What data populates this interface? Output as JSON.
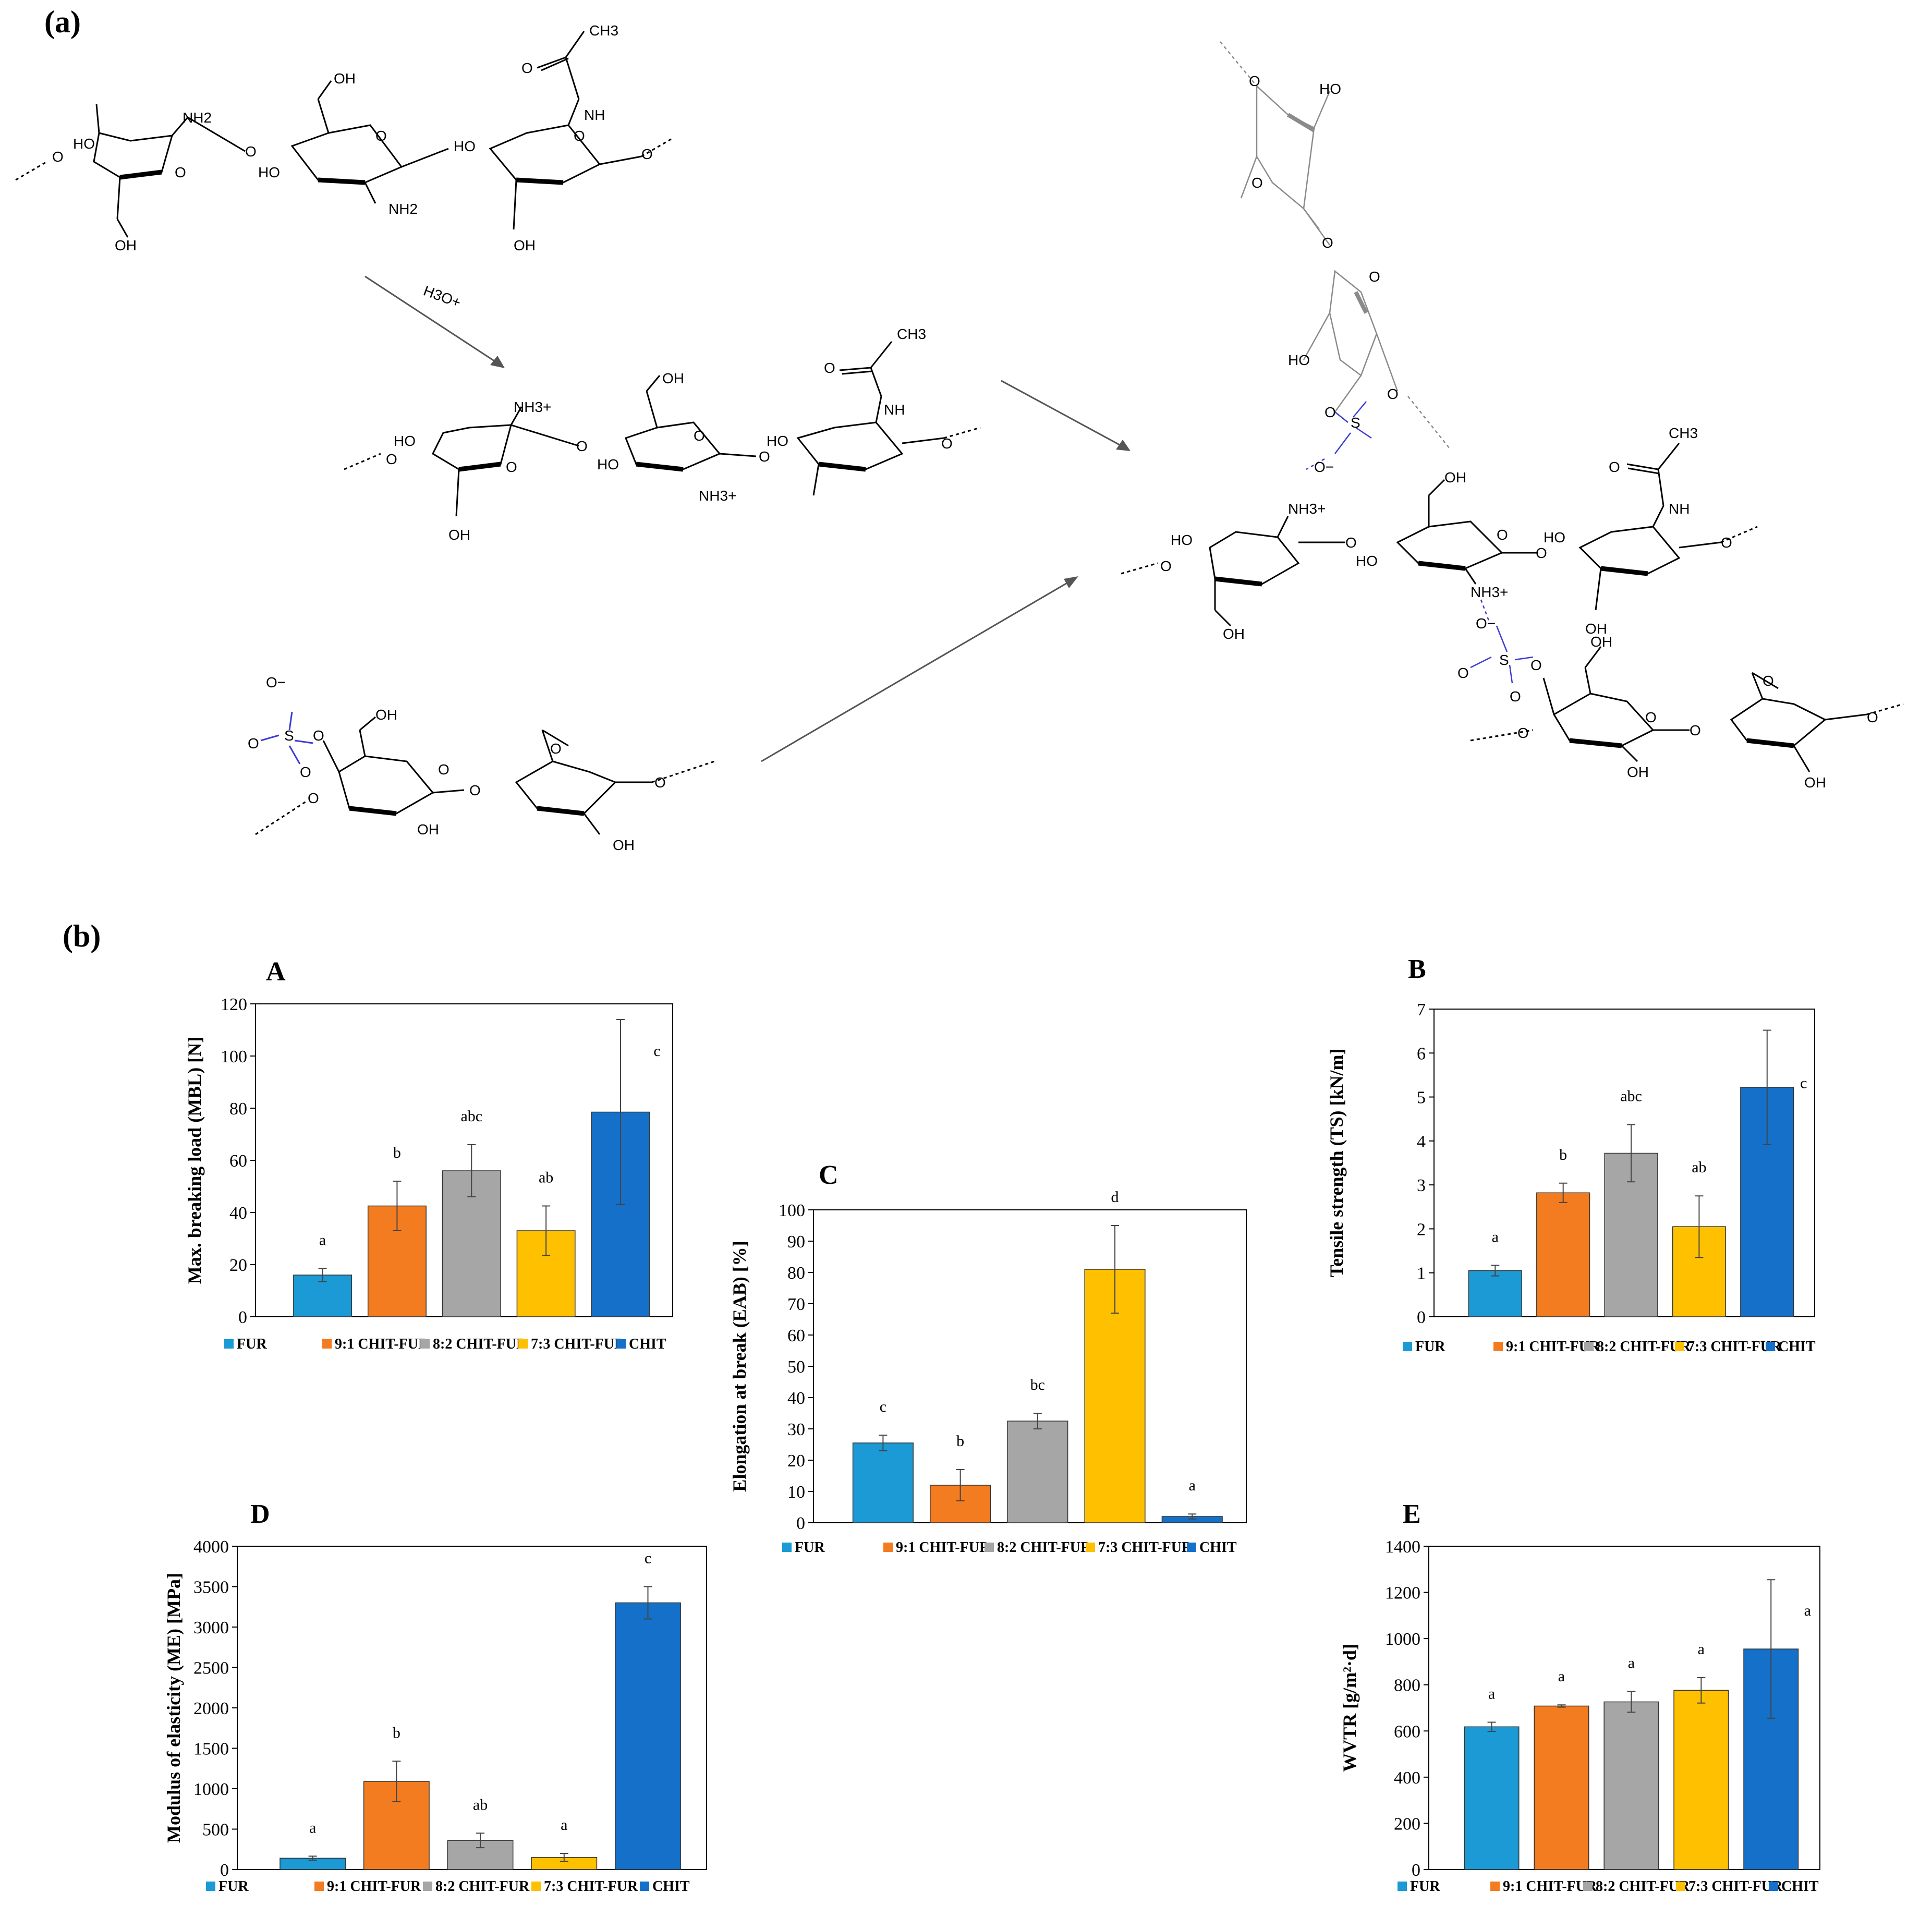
{
  "panel_labels": {
    "a": "(a)",
    "b": "(b)"
  },
  "structures": {
    "reagent": "H3O+",
    "labels": {
      "OH": "OH",
      "HO": "HO",
      "O": "O",
      "NH": "NH",
      "CH3": "CH3",
      "NH2": "NH2",
      "NH3": "NH3+",
      "S": "S",
      "Om": "O−"
    }
  },
  "colors": {
    "FUR": "#1b9ad6",
    "9:1 CHIT-FUR": "#f47c20",
    "8:2 CHIT-FUR": "#a6a6a6",
    "7:3 CHIT-FUR": "#ffc000",
    "CHIT": "#1570c9",
    "amine": "#1a9a6c",
    "ammonium": "#e81e1e",
    "sulfate": "#3c3cd4",
    "furcellaran_ghost": "#8a8a8a"
  },
  "chart_data": [
    {
      "id": "A",
      "type": "bar",
      "title": "A",
      "ylabel": "Max. breaking load (MBL) [N]",
      "ylim": [
        0,
        120
      ],
      "yticks": [
        0,
        20,
        40,
        60,
        80,
        100,
        120
      ],
      "categories": [
        "FUR",
        "9:1 CHIT-FUR",
        "8:2 CHIT-FUR",
        "7:3 CHIT-FUR",
        "CHIT"
      ],
      "values": [
        16,
        42.5,
        56,
        33,
        78.5
      ],
      "errors": [
        2.5,
        9.5,
        10,
        9.5,
        35.5
      ],
      "letters": [
        "a",
        "b",
        "abc",
        "ab",
        "c"
      ],
      "legend": "bottom"
    },
    {
      "id": "B",
      "type": "bar",
      "title": "B",
      "ylabel": "Tensile strength (TS) [kN/m]",
      "ylim": [
        0,
        7
      ],
      "yticks": [
        0,
        1,
        2,
        3,
        4,
        5,
        6,
        7
      ],
      "categories": [
        "FUR",
        "9:1 CHIT-FUR",
        "8:2 CHIT-FUR",
        "7:3 CHIT-FUR",
        "CHIT"
      ],
      "values": [
        1.05,
        2.82,
        3.72,
        2.05,
        5.22
      ],
      "errors": [
        0.12,
        0.22,
        0.65,
        0.7,
        1.3
      ],
      "letters": [
        "a",
        "b",
        "abc",
        "ab",
        "c"
      ],
      "legend": "bottom"
    },
    {
      "id": "C",
      "type": "bar",
      "title": "C",
      "ylabel": "Elongation at break (EAB) [%]",
      "ylim": [
        0,
        100
      ],
      "yticks": [
        0,
        10,
        20,
        30,
        40,
        50,
        60,
        70,
        80,
        90,
        100
      ],
      "categories": [
        "FUR",
        "9:1 CHIT-FUR",
        "8:2 CHIT-FUR",
        "7:3 CHIT-FUR",
        "CHIT"
      ],
      "values": [
        25.5,
        12,
        32.5,
        81,
        2
      ],
      "errors": [
        2.5,
        5,
        2.5,
        14,
        0.8
      ],
      "letters": [
        "c",
        "b",
        "bc",
        "d",
        "a"
      ],
      "legend": "bottom"
    },
    {
      "id": "D",
      "type": "bar",
      "title": "D",
      "ylabel": "Modulus of elasticity (ME) [MPa]",
      "ylim": [
        0,
        4000
      ],
      "yticks": [
        0,
        500,
        1000,
        1500,
        2000,
        2500,
        3000,
        3500,
        4000
      ],
      "categories": [
        "FUR",
        "9:1 CHIT-FUR",
        "8:2 CHIT-FUR",
        "7:3 CHIT-FUR",
        "CHIT"
      ],
      "values": [
        140,
        1090,
        360,
        150,
        3300
      ],
      "errors": [
        25,
        250,
        90,
        50,
        200
      ],
      "letters": [
        "a",
        "b",
        "ab",
        "a",
        "c"
      ],
      "legend": "bottom"
    },
    {
      "id": "E",
      "type": "bar",
      "title": "E",
      "ylabel": "WVTR [g/m²·d]",
      "ylim": [
        0,
        1400
      ],
      "yticks": [
        0,
        200,
        400,
        600,
        800,
        1000,
        1200,
        1400
      ],
      "categories": [
        "FUR",
        "9:1 CHIT-FUR",
        "8:2 CHIT-FUR",
        "7:3 CHIT-FUR",
        "CHIT"
      ],
      "values": [
        618,
        708,
        726,
        776,
        955
      ],
      "errors": [
        20,
        5,
        45,
        55,
        300
      ],
      "letters": [
        "a",
        "a",
        "a",
        "a",
        "a"
      ],
      "legend": "bottom"
    }
  ]
}
